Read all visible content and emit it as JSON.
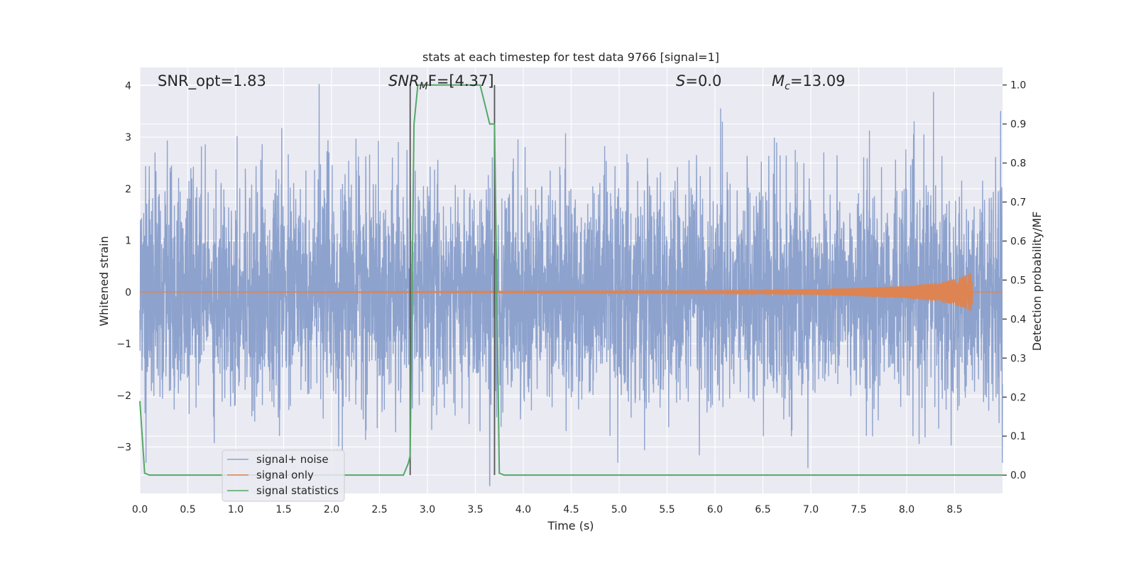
{
  "chart_data": {
    "type": "line",
    "title": "stats at each timestep for test data 9766 [signal=1]",
    "xlabel": "Time (s)",
    "ylabel": "Whitened strain",
    "y2label": "Detection probability/MF",
    "xlim": [
      0,
      9.0
    ],
    "ylim": [
      -3.9,
      4.35
    ],
    "y2lim": [
      -0.047,
      1.045
    ],
    "x_ticks": [
      0.0,
      0.5,
      1.0,
      1.5,
      2.0,
      2.5,
      3.0,
      3.5,
      4.0,
      4.5,
      5.0,
      5.5,
      6.0,
      6.5,
      7.0,
      7.5,
      8.0,
      8.5
    ],
    "x_tick_labels": [
      "0.0",
      "0.5",
      "1.0",
      "1.5",
      "2.0",
      "2.5",
      "3.0",
      "3.5",
      "4.0",
      "4.5",
      "5.0",
      "5.5",
      "6.0",
      "6.5",
      "7.0",
      "7.5",
      "8.0",
      "8.5"
    ],
    "y_ticks": [
      -3,
      -2,
      -1,
      0,
      1,
      2,
      3,
      4
    ],
    "y_tick_labels": [
      "−3",
      "−2",
      "−1",
      "0",
      "1",
      "2",
      "3",
      "4"
    ],
    "y2_ticks": [
      0.0,
      0.1,
      0.2,
      0.3,
      0.4,
      0.5,
      0.6,
      0.7,
      0.8,
      0.9,
      1.0
    ],
    "y2_tick_labels": [
      "0.0",
      "0.1",
      "0.2",
      "0.3",
      "0.4",
      "0.5",
      "0.6",
      "0.7",
      "0.8",
      "0.9",
      "1.0"
    ],
    "grid": true,
    "legend_position": "lower-left",
    "annotations": {
      "snr_opt": "SNR_opt=1.83",
      "snr_mf_main": "SNR",
      "snr_mf_sub": "M",
      "snr_mf_rest": "F=[4.37]",
      "s_italic": "S",
      "s_value": "=0.0",
      "mc_italic": "M",
      "mc_sub": "c",
      "mc_value": "=13.09"
    },
    "vertical_markers_x": [
      2.82,
      3.7
    ],
    "series": [
      {
        "name": "signal+ noise",
        "color": "#8da2cd",
        "kind": "noise",
        "approx_peak_values": [
          {
            "x": 1.87,
            "y": 4.02
          },
          {
            "x": 6.06,
            "y": 3.55
          },
          {
            "x": 8.28,
            "y": 3.87
          },
          {
            "x": 8.98,
            "y": 3.5
          },
          {
            "x": 3.65,
            "y": -3.75
          },
          {
            "x": 6.97,
            "y": -3.4
          }
        ],
        "typical_envelope": [
          -2.0,
          2.0
        ]
      },
      {
        "name": "signal only",
        "color": "#dd8452",
        "kind": "chirp",
        "x": [
          0.0,
          6.0,
          7.0,
          7.5,
          8.0,
          8.3,
          8.5,
          8.6,
          8.68,
          8.7,
          9.0
        ],
        "amplitude": [
          0.0,
          0.03,
          0.05,
          0.08,
          0.12,
          0.18,
          0.25,
          0.32,
          0.4,
          0.0,
          0.0
        ]
      },
      {
        "name": "signal statistics",
        "color": "#55a868",
        "kind": "step",
        "x": [
          0.0,
          0.05,
          0.1,
          2.75,
          2.8,
          2.82,
          2.86,
          2.9,
          3.55,
          3.65,
          3.7,
          3.75,
          3.8,
          9.0
        ],
        "y": [
          0.19,
          0.005,
          0.0,
          0.0,
          0.03,
          0.05,
          0.9,
          1.0,
          1.0,
          0.9,
          0.9,
          0.005,
          0.0,
          0.0
        ]
      }
    ]
  }
}
